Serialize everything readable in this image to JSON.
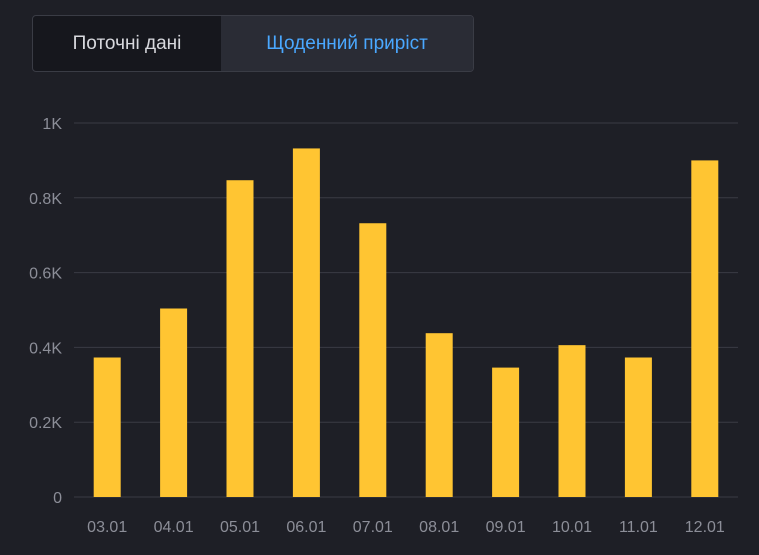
{
  "tabs": [
    {
      "label": "Поточні дані",
      "active": false
    },
    {
      "label": "Щоденний приріст",
      "active": true
    }
  ],
  "colors": {
    "background": "#1e1f26",
    "bar": "#ffc532",
    "active_tab_text": "#4aa8ff",
    "grid": "#3a3b44",
    "tick_text": "#8c8e98"
  },
  "chart_data": {
    "type": "bar",
    "categories": [
      "03.01",
      "04.01",
      "05.01",
      "06.01",
      "07.01",
      "08.01",
      "09.01",
      "10.01",
      "11.01",
      "12.01"
    ],
    "values": [
      373,
      504,
      847,
      932,
      732,
      438,
      346,
      406,
      373,
      900
    ],
    "yticks": [
      "0",
      "0.2K",
      "0.4K",
      "0.6K",
      "0.8K",
      "1K"
    ],
    "ylim": [
      0,
      1000
    ],
    "title": "",
    "xlabel": "",
    "ylabel": "",
    "grid": true
  }
}
